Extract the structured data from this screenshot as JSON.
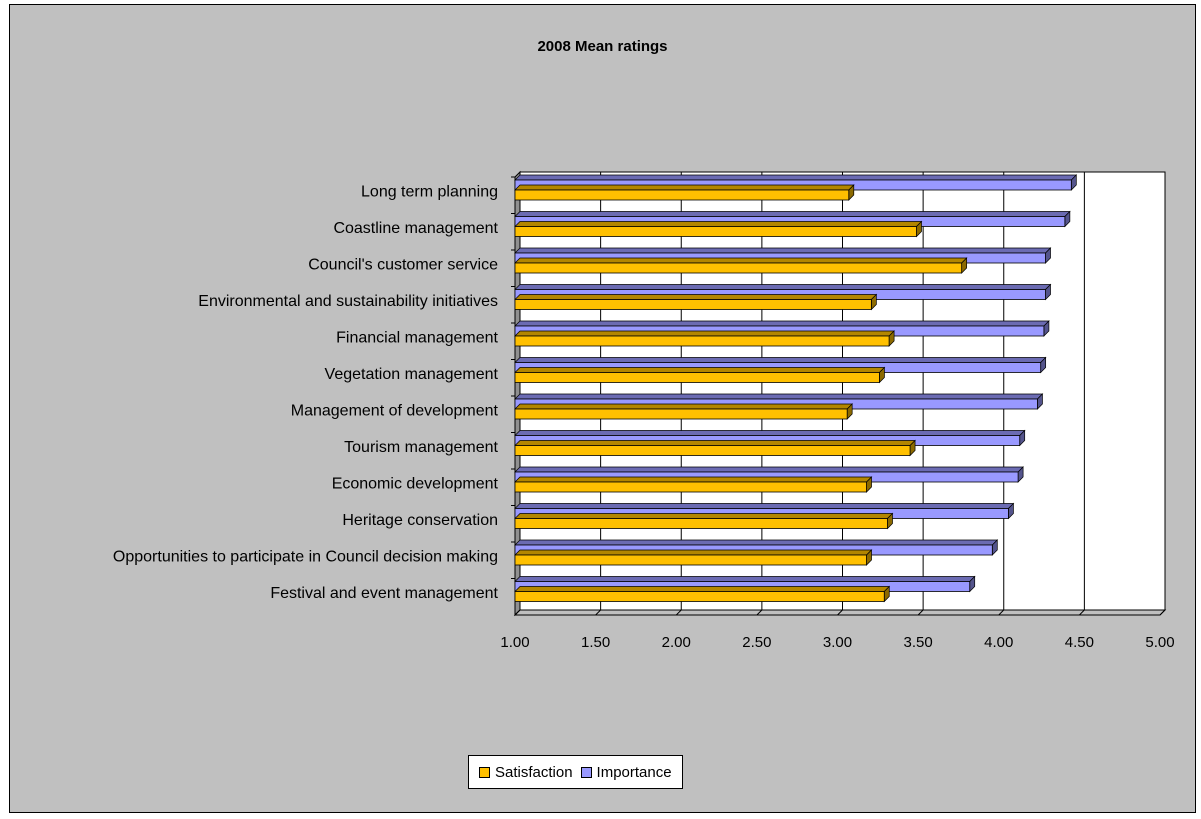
{
  "chart_data": {
    "type": "bar",
    "orientation": "horizontal",
    "title": "2008 Mean ratings",
    "categories": [
      "Long term planning",
      "Coastline management",
      "Council's customer service",
      "Environmental and sustainability initiatives",
      "Financial management",
      "Vegetation management",
      "Management of development",
      "Tourism management",
      "Economic development",
      "Heritage conservation",
      "Opportunities to participate in Council decision making",
      "Festival and event management"
    ],
    "series": [
      {
        "name": "Satisfaction",
        "color": "#ffc000",
        "values": [
          3.07,
          3.49,
          3.77,
          3.21,
          3.32,
          3.26,
          3.06,
          3.45,
          3.18,
          3.31,
          3.18,
          3.29
        ]
      },
      {
        "name": "Importance",
        "color": "#9999ff",
        "values": [
          4.45,
          4.41,
          4.29,
          4.29,
          4.28,
          4.26,
          4.24,
          4.13,
          4.12,
          4.06,
          3.96,
          3.82
        ]
      }
    ],
    "xlim": [
      1.0,
      5.0
    ],
    "xticks": [
      "1.00",
      "1.50",
      "2.00",
      "2.50",
      "3.00",
      "3.50",
      "4.00",
      "4.50",
      "5.00"
    ],
    "grid": true,
    "legend_position": "bottom"
  }
}
